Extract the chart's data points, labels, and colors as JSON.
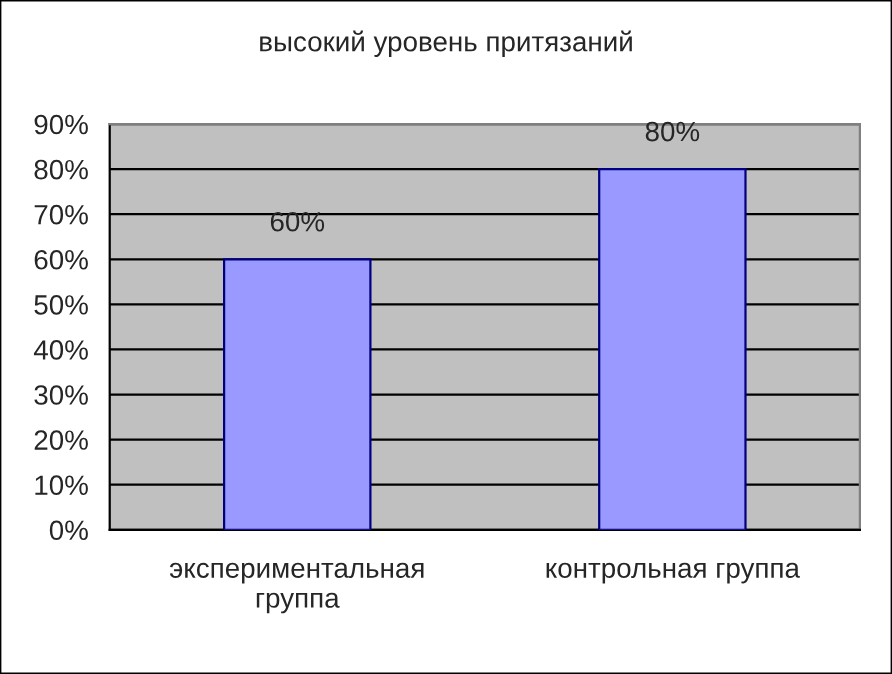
{
  "chart_data": {
    "type": "bar",
    "title": "высокий уровень притязаний",
    "categories": [
      "экспериментальная\nгруппа",
      "контрольная группа"
    ],
    "values": [
      60,
      80
    ],
    "value_labels": [
      "60%",
      "80%"
    ],
    "color": "#9999ff",
    "ylim": [
      0,
      90
    ],
    "yticks": [
      {
        "value": 0,
        "label": "0%"
      },
      {
        "value": 10,
        "label": "10%"
      },
      {
        "value": 20,
        "label": "20%"
      },
      {
        "value": 30,
        "label": "30%"
      },
      {
        "value": 40,
        "label": "40%"
      },
      {
        "value": 50,
        "label": "50%"
      },
      {
        "value": 60,
        "label": "60%"
      },
      {
        "value": 70,
        "label": "70%"
      },
      {
        "value": 80,
        "label": "80%"
      },
      {
        "value": 90,
        "label": "90%"
      }
    ],
    "grid": "y",
    "legend": false
  }
}
